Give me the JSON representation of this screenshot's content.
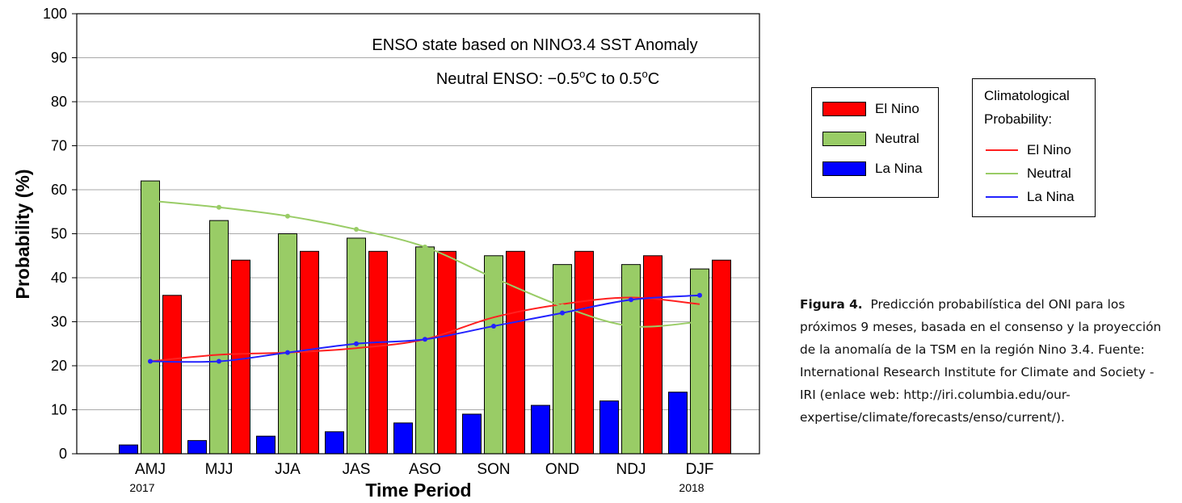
{
  "chart_data": {
    "type": "bar",
    "title_lines": [
      "ENSO state based on NINO3.4 SST Anomaly"
    ],
    "subtitle": "Neutral ENSO: −0.5°C to 0.5°C",
    "subtitle_parts": {
      "prefix": "Neutral ENSO: −0.5",
      "sup1": "o",
      "mid": "C to 0.5",
      "sup2": "o",
      "suffix": "C"
    },
    "xlabel": "Time Period",
    "ylabel": "Probability (%)",
    "ylim": [
      0,
      100
    ],
    "yticks": [
      "0",
      "10",
      "20",
      "30",
      "40",
      "50",
      "60",
      "70",
      "80",
      "90",
      "100"
    ],
    "grid": true,
    "categories": [
      "AMJ",
      "MJJ",
      "JJA",
      "JAS",
      "ASO",
      "SON",
      "OND",
      "NDJ",
      "DJF"
    ],
    "year_labels": [
      {
        "category": "AMJ",
        "text": "2017"
      },
      {
        "category": "DJF",
        "text": "2018"
      }
    ],
    "series": [
      {
        "name": "La Nina",
        "values": [
          2,
          3,
          4,
          5,
          7,
          9,
          11,
          12,
          14
        ],
        "color": "#0000ff"
      },
      {
        "name": "Neutral",
        "values": [
          62,
          53,
          50,
          49,
          47,
          45,
          43,
          43,
          42
        ],
        "color": "#99cc66"
      },
      {
        "name": "El Nino",
        "values": [
          36,
          44,
          46,
          46,
          46,
          46,
          46,
          45,
          44
        ],
        "color": "#ff0000"
      }
    ],
    "climatology": [
      {
        "name": "El Nino",
        "color": "#ff2020",
        "values": [
          21,
          22.5,
          23,
          24,
          26,
          31,
          34,
          35.5,
          34
        ],
        "markers": false
      },
      {
        "name": "Neutral",
        "color": "#99cc66",
        "values": [
          57.5,
          56,
          54,
          51,
          47,
          40,
          33.5,
          29,
          30
        ],
        "markers": true
      },
      {
        "name": "La Nina",
        "color": "#2222ff",
        "values": [
          21,
          21,
          23,
          25,
          26,
          29,
          32,
          35,
          36
        ],
        "markers": true
      }
    ],
    "legend": {
      "items": [
        "El Nino",
        "Neutral",
        "La Nina"
      ],
      "placement": "right"
    },
    "climatology_legend": {
      "title_line1": "Climatological",
      "title_line2": "Probability:",
      "items": [
        "El Nino",
        "Neutral",
        "La Nina"
      ]
    }
  },
  "caption": {
    "lead": "Figura 4.",
    "text": "Predicción probabilística del ONI para los próximos 9 meses, basada en el consenso y la proyección de la anomalía de la TSM en la región Nino 3.4. Fuente: International Research Institute for Climate and Society - IRI (enlace web: http://iri.columbia.edu/our-expertise/climate/forecasts/enso/current/)."
  }
}
